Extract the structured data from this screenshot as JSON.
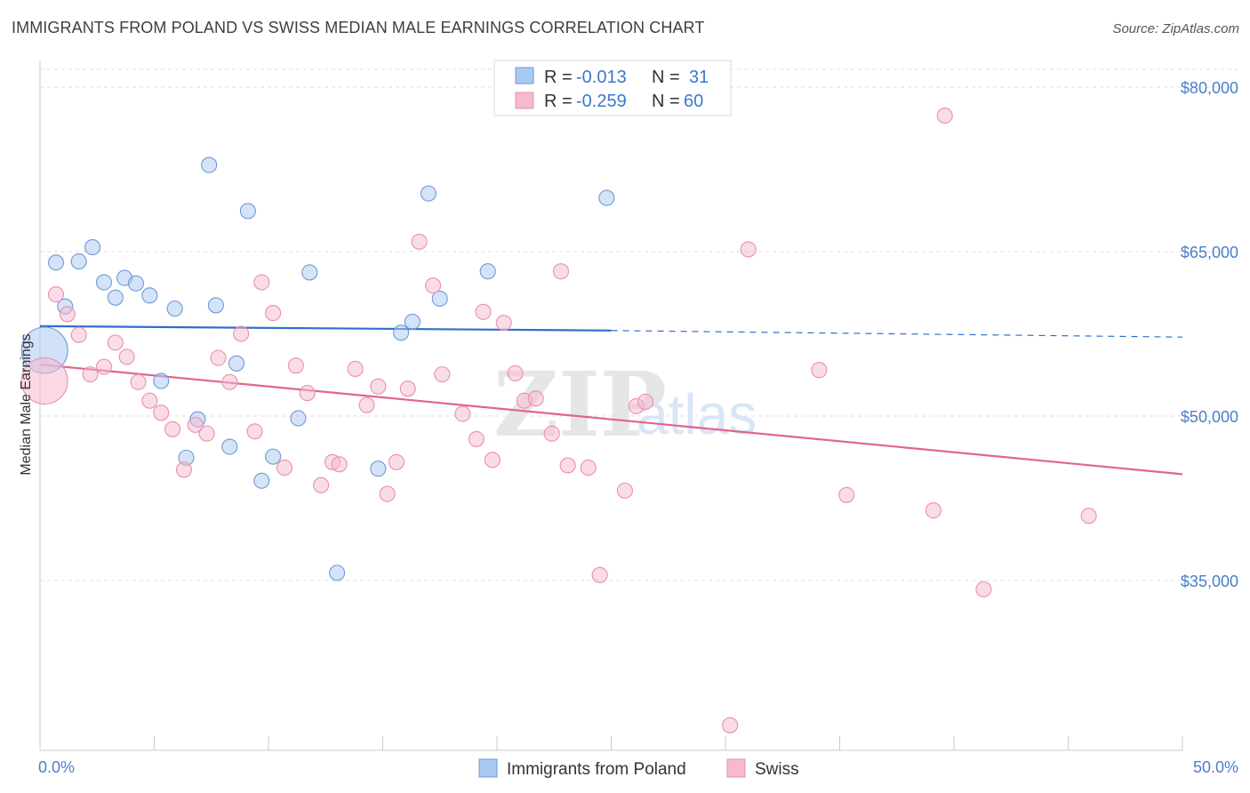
{
  "title": "IMMIGRANTS FROM POLAND VS SWISS MEDIAN MALE EARNINGS CORRELATION CHART",
  "source": "Source: ZipAtlas.com",
  "watermark": {
    "zip": "ZIP",
    "atlas": "atlas"
  },
  "legend": {
    "rows": [
      {
        "r_label": "R = ",
        "r_value": "-0.013",
        "n_label": "N = ",
        "n_value": "31",
        "color": "#a9c8f2"
      },
      {
        "r_label": "R = ",
        "r_value": "-0.259",
        "n_label": "N = ",
        "n_value": "60",
        "color": "#f6b9cd"
      }
    ]
  },
  "bottom_legend": [
    {
      "label": "Immigrants from Poland",
      "color": "#a9c8f2"
    },
    {
      "label": "Swiss",
      "color": "#f6b9cd"
    }
  ],
  "chart_data": {
    "type": "scatter",
    "title": "IMMIGRANTS FROM POLAND VS SWISS MEDIAN MALE EARNINGS CORRELATION CHART",
    "xlabel": "",
    "ylabel": "Median Male Earnings",
    "xlim": [
      0,
      50
    ],
    "ylim": [
      20000,
      82000
    ],
    "x_tick_labels": [
      "0.0%",
      "50.0%"
    ],
    "y_ticks": [
      35000,
      50000,
      65000,
      80000
    ],
    "y_tick_labels": [
      "$35,000",
      "$50,000",
      "$65,000",
      "$80,000"
    ],
    "series": [
      {
        "name": "Immigrants from Poland",
        "color": "#a9c8f2",
        "stroke": "#6d9ad6",
        "line_color": "#2f6fcc",
        "trend": {
          "x0": 0,
          "y0": 58200,
          "x1": 25,
          "y1": 57800,
          "x_dash_end": 50,
          "y_dash_end": 57200
        },
        "points": [
          {
            "x": 0.2,
            "y": 56000,
            "big": true
          },
          {
            "x": 0.7,
            "y": 64000
          },
          {
            "x": 1.1,
            "y": 60000
          },
          {
            "x": 1.7,
            "y": 64100
          },
          {
            "x": 2.3,
            "y": 65400
          },
          {
            "x": 2.8,
            "y": 62200
          },
          {
            "x": 3.3,
            "y": 60800
          },
          {
            "x": 3.7,
            "y": 62600
          },
          {
            "x": 4.2,
            "y": 62100
          },
          {
            "x": 4.8,
            "y": 61000
          },
          {
            "x": 5.3,
            "y": 53200
          },
          {
            "x": 5.9,
            "y": 59800
          },
          {
            "x": 6.4,
            "y": 46200
          },
          {
            "x": 6.9,
            "y": 49700
          },
          {
            "x": 7.4,
            "y": 72900
          },
          {
            "x": 7.7,
            "y": 60100
          },
          {
            "x": 8.3,
            "y": 47200
          },
          {
            "x": 8.6,
            "y": 54800
          },
          {
            "x": 9.1,
            "y": 68700
          },
          {
            "x": 9.7,
            "y": 44100
          },
          {
            "x": 10.2,
            "y": 46300
          },
          {
            "x": 11.3,
            "y": 49800
          },
          {
            "x": 11.8,
            "y": 63100
          },
          {
            "x": 13.0,
            "y": 35700
          },
          {
            "x": 14.8,
            "y": 45200
          },
          {
            "x": 15.8,
            "y": 57600
          },
          {
            "x": 16.3,
            "y": 58600
          },
          {
            "x": 17.0,
            "y": 70300
          },
          {
            "x": 17.5,
            "y": 60700
          },
          {
            "x": 19.6,
            "y": 63200
          },
          {
            "x": 24.8,
            "y": 69900
          }
        ]
      },
      {
        "name": "Swiss",
        "color": "#f6b9cd",
        "stroke": "#e98fae",
        "line_color": "#e0658f",
        "trend": {
          "x0": 0,
          "y0": 54700,
          "x1": 50,
          "y1": 44700
        },
        "points": [
          {
            "x": 0.2,
            "y": 53200,
            "big": true
          },
          {
            "x": 0.7,
            "y": 61100
          },
          {
            "x": 1.2,
            "y": 59300
          },
          {
            "x": 1.7,
            "y": 57400
          },
          {
            "x": 2.2,
            "y": 53800
          },
          {
            "x": 2.8,
            "y": 54500
          },
          {
            "x": 3.3,
            "y": 56700
          },
          {
            "x": 3.8,
            "y": 55400
          },
          {
            "x": 4.3,
            "y": 53100
          },
          {
            "x": 4.8,
            "y": 51400
          },
          {
            "x": 5.3,
            "y": 50300
          },
          {
            "x": 5.8,
            "y": 48800
          },
          {
            "x": 6.3,
            "y": 45100
          },
          {
            "x": 6.8,
            "y": 49200
          },
          {
            "x": 7.3,
            "y": 48400
          },
          {
            "x": 7.8,
            "y": 55300
          },
          {
            "x": 8.3,
            "y": 53100
          },
          {
            "x": 8.8,
            "y": 57500
          },
          {
            "x": 9.4,
            "y": 48600
          },
          {
            "x": 9.7,
            "y": 62200
          },
          {
            "x": 10.2,
            "y": 59400
          },
          {
            "x": 10.7,
            "y": 45300
          },
          {
            "x": 11.2,
            "y": 54600
          },
          {
            "x": 11.7,
            "y": 52100
          },
          {
            "x": 12.3,
            "y": 43700
          },
          {
            "x": 12.8,
            "y": 45800
          },
          {
            "x": 13.1,
            "y": 45600
          },
          {
            "x": 13.8,
            "y": 54300
          },
          {
            "x": 14.3,
            "y": 51000
          },
          {
            "x": 14.8,
            "y": 52700
          },
          {
            "x": 15.2,
            "y": 42900
          },
          {
            "x": 15.6,
            "y": 45800
          },
          {
            "x": 16.1,
            "y": 52500
          },
          {
            "x": 16.6,
            "y": 65900
          },
          {
            "x": 17.2,
            "y": 61900
          },
          {
            "x": 17.6,
            "y": 53800
          },
          {
            "x": 18.5,
            "y": 50200
          },
          {
            "x": 19.1,
            "y": 47900
          },
          {
            "x": 19.4,
            "y": 59500
          },
          {
            "x": 19.8,
            "y": 46000
          },
          {
            "x": 20.3,
            "y": 58500
          },
          {
            "x": 20.8,
            "y": 53900
          },
          {
            "x": 21.2,
            "y": 51400
          },
          {
            "x": 21.7,
            "y": 51600
          },
          {
            "x": 22.4,
            "y": 48400
          },
          {
            "x": 22.8,
            "y": 63200
          },
          {
            "x": 23.1,
            "y": 45500
          },
          {
            "x": 24.0,
            "y": 45300
          },
          {
            "x": 24.5,
            "y": 35500
          },
          {
            "x": 25.6,
            "y": 43200
          },
          {
            "x": 26.1,
            "y": 50900
          },
          {
            "x": 26.5,
            "y": 51300
          },
          {
            "x": 30.2,
            "y": 21800
          },
          {
            "x": 31.0,
            "y": 65200
          },
          {
            "x": 34.1,
            "y": 54200
          },
          {
            "x": 35.3,
            "y": 42800
          },
          {
            "x": 39.1,
            "y": 41400
          },
          {
            "x": 39.6,
            "y": 77400
          },
          {
            "x": 41.3,
            "y": 34200
          },
          {
            "x": 45.9,
            "y": 40900
          }
        ]
      }
    ]
  }
}
